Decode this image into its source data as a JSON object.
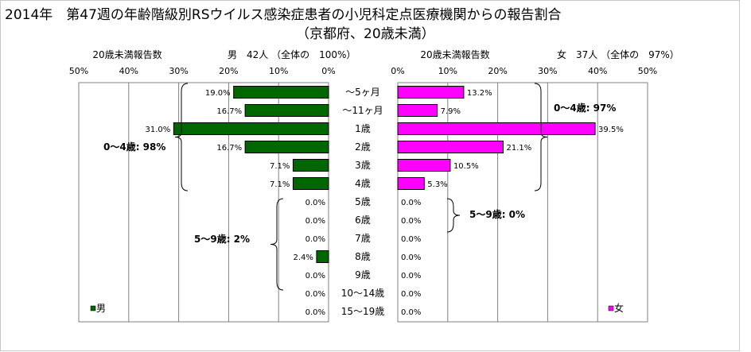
{
  "title_line1": "2014年　第47週の年齢階級別RSウイルス感染症患者の小児科定点医療機関からの報告割合",
  "title_line2": "（京都府、20歳未満）",
  "chart_data": [
    {
      "type": "bar",
      "orientation": "horizontal",
      "side": "left",
      "xlabel": "20歳未満報告数",
      "header": "男　42人 （全体の　100%）",
      "ticks": [
        "50%",
        "40%",
        "30%",
        "20%",
        "10%",
        "0%"
      ],
      "xlim": [
        0,
        50
      ],
      "legend": "男",
      "legend_position": "bottom-left",
      "color": "#006600",
      "categories": [
        "～5ヶ月",
        "～11ヶ月",
        "1歳",
        "2歳",
        "3歳",
        "4歳",
        "5歳",
        "6歳",
        "7歳",
        "8歳",
        "9歳",
        "10～14歳",
        "15～19歳"
      ],
      "values": [
        19.0,
        16.7,
        31.0,
        16.7,
        7.1,
        7.1,
        0.0,
        0.0,
        0.0,
        2.4,
        0.0,
        0.0,
        0.0
      ],
      "value_labels": [
        "19.0%",
        "16.7%",
        "31.0%",
        "16.7%",
        "7.1%",
        "7.1%",
        "0.0%",
        "0.0%",
        "0.0%",
        "2.4%",
        "0.0%",
        "0.0%",
        "0.0%"
      ],
      "annotations": [
        "0～4歳: 98%",
        "5～9歳: 2%"
      ]
    },
    {
      "type": "bar",
      "orientation": "horizontal",
      "side": "right",
      "xlabel": "20歳未満報告数",
      "header": "女　37人 （全体の　97%）",
      "ticks": [
        "0%",
        "10%",
        "20%",
        "30%",
        "40%",
        "50%"
      ],
      "xlim": [
        0,
        50
      ],
      "legend": "女",
      "legend_position": "bottom-right",
      "color": "#ff00ff",
      "categories": [
        "～5ヶ月",
        "～11ヶ月",
        "1歳",
        "2歳",
        "3歳",
        "4歳",
        "5歳",
        "6歳",
        "7歳",
        "8歳",
        "9歳",
        "10～14歳",
        "15～19歳"
      ],
      "values": [
        13.2,
        7.9,
        39.5,
        21.1,
        10.5,
        5.3,
        0.0,
        0.0,
        0.0,
        0.0,
        0.0,
        0.0,
        0.0
      ],
      "value_labels": [
        "13.2%",
        "7.9%",
        "39.5%",
        "21.1%",
        "10.5%",
        "5.3%",
        "0.0%",
        "0.0%",
        "0.0%",
        "0.0%",
        "0.0%",
        "0.0%",
        "0.0%"
      ],
      "annotations": [
        "0～4歳: 97%",
        "5～9歳: 0%"
      ]
    }
  ]
}
